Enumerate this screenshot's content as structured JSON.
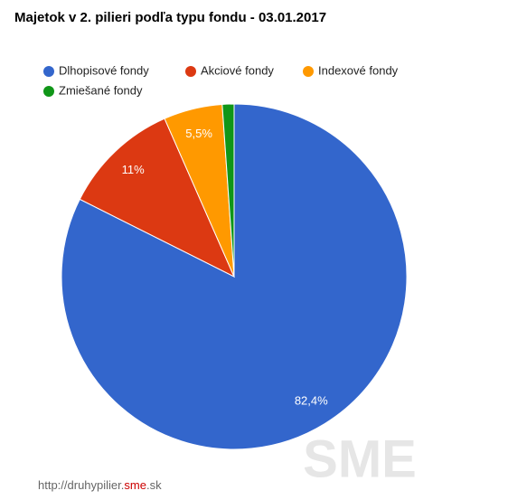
{
  "chart_data": {
    "type": "pie",
    "title": "Majetok v 2. pilieri podľa typu fondu - 03.01.2017",
    "categories": [
      "Dlhopisové fondy",
      "Akciové fondy",
      "Indexové fondy",
      "Zmiešané fondy"
    ],
    "values": [
      82.4,
      11,
      5.5,
      1.1
    ],
    "value_labels": [
      "82,4%",
      "11%",
      "5,5%",
      null
    ],
    "colors": [
      "#3366cc",
      "#dc3912",
      "#ff9900",
      "#109618"
    ],
    "legend": "top"
  },
  "footer": {
    "prefix": "http://druhypilier.",
    "highlight": "sme",
    "suffix": ".sk"
  },
  "watermark": "SME"
}
